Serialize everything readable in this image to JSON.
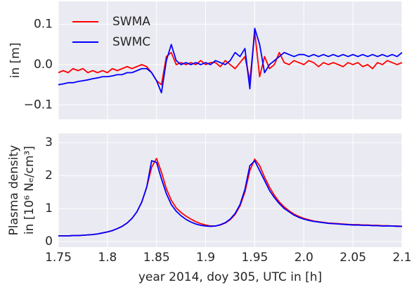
{
  "chart_data": [
    {
      "type": "line",
      "ylabel": "in [m]",
      "x": [
        1.75,
        1.755,
        1.76,
        1.765,
        1.77,
        1.775,
        1.78,
        1.785,
        1.79,
        1.795,
        1.8,
        1.805,
        1.81,
        1.815,
        1.82,
        1.825,
        1.83,
        1.835,
        1.84,
        1.845,
        1.85,
        1.855,
        1.86,
        1.865,
        1.87,
        1.875,
        1.88,
        1.885,
        1.89,
        1.895,
        1.9,
        1.905,
        1.91,
        1.915,
        1.92,
        1.925,
        1.93,
        1.935,
        1.94,
        1.945,
        1.95,
        1.955,
        1.96,
        1.965,
        1.97,
        1.975,
        1.98,
        1.985,
        1.99,
        1.995,
        2.0,
        2.005,
        2.01,
        2.015,
        2.02,
        2.025,
        2.03,
        2.035,
        2.04,
        2.045,
        2.05,
        2.055,
        2.06,
        2.065,
        2.07,
        2.075,
        2.08,
        2.085,
        2.09,
        2.095,
        2.1
      ],
      "series": [
        {
          "name": "SWMA",
          "color": "#ff0000",
          "values": [
            -0.02,
            -0.015,
            -0.02,
            -0.01,
            -0.015,
            -0.01,
            -0.02,
            -0.015,
            -0.02,
            -0.015,
            -0.02,
            -0.01,
            -0.015,
            -0.01,
            -0.005,
            -0.01,
            -0.005,
            0,
            -0.005,
            -0.02,
            -0.04,
            -0.05,
            0.02,
            0.03,
            0,
            0.005,
            0,
            0.005,
            0,
            0.01,
            0,
            0.005,
            0.005,
            -0.005,
            0.01,
            0,
            -0.01,
            0.005,
            0.02,
            -0.04,
            0.08,
            -0.03,
            0.02,
            -0.01,
            0,
            0.03,
            0.005,
            0,
            0.01,
            0.005,
            0,
            0.01,
            0.005,
            -0.005,
            0.005,
            0,
            0.005,
            0,
            -0.005,
            0.005,
            0,
            0.005,
            -0.005,
            0,
            -0.01,
            0.005,
            0,
            0.01,
            0.005,
            0,
            0.005
          ]
        },
        {
          "name": "SWMC",
          "color": "#0000ff",
          "values": [
            -0.05,
            -0.048,
            -0.045,
            -0.045,
            -0.042,
            -0.04,
            -0.038,
            -0.035,
            -0.033,
            -0.03,
            -0.03,
            -0.028,
            -0.025,
            -0.025,
            -0.02,
            -0.02,
            -0.015,
            -0.01,
            -0.01,
            -0.02,
            -0.04,
            -0.07,
            0.01,
            0.05,
            0.01,
            0,
            0.005,
            0,
            0.005,
            0,
            0.005,
            0,
            0.01,
            0.005,
            0,
            0.01,
            0.03,
            0.02,
            0.04,
            -0.06,
            0.09,
            0.05,
            -0.02,
            0,
            0.01,
            0.02,
            0.03,
            0.025,
            0.02,
            0.025,
            0.025,
            0.02,
            0.025,
            0.02,
            0.025,
            0.02,
            0.025,
            0.02,
            0.025,
            0.02,
            0.025,
            0.02,
            0.025,
            0.02,
            0.025,
            0.02,
            0.025,
            0.02,
            0.025,
            0.02,
            0.03
          ]
        }
      ],
      "xlim": [
        1.75,
        2.1
      ],
      "ylim": [
        -0.136,
        0.157
      ],
      "yticks": [
        {
          "value": 0.1,
          "label": "0.1"
        },
        {
          "value": 0,
          "label": "0.0"
        },
        {
          "value": -0.1,
          "label": "−0.1"
        }
      ],
      "grid": true,
      "legend": "upper left"
    },
    {
      "type": "line",
      "ylabel": [
        "Plasma density",
        "in [10⁶ Nₑ/cm³]"
      ],
      "xlabel": "year 2014, doy 305, UTC in [h]",
      "x": [
        1.75,
        1.755,
        1.76,
        1.765,
        1.77,
        1.775,
        1.78,
        1.785,
        1.79,
        1.795,
        1.8,
        1.805,
        1.81,
        1.815,
        1.82,
        1.825,
        1.83,
        1.835,
        1.84,
        1.845,
        1.85,
        1.855,
        1.86,
        1.865,
        1.87,
        1.875,
        1.88,
        1.885,
        1.89,
        1.895,
        1.9,
        1.905,
        1.91,
        1.915,
        1.92,
        1.925,
        1.93,
        1.935,
        1.94,
        1.945,
        1.95,
        1.955,
        1.96,
        1.965,
        1.97,
        1.975,
        1.98,
        1.985,
        1.99,
        1.995,
        2.0,
        2.005,
        2.01,
        2.015,
        2.02,
        2.025,
        2.03,
        2.035,
        2.04,
        2.045,
        2.05,
        2.055,
        2.06,
        2.065,
        2.07,
        2.075,
        2.08,
        2.085,
        2.09,
        2.095,
        2.1
      ],
      "series": [
        {
          "name": "SWMA",
          "color": "#ff0000",
          "values": [
            0.17,
            0.17,
            0.17,
            0.18,
            0.18,
            0.19,
            0.2,
            0.21,
            0.23,
            0.26,
            0.29,
            0.33,
            0.39,
            0.46,
            0.56,
            0.7,
            0.9,
            1.2,
            1.65,
            2.25,
            2.52,
            2.1,
            1.6,
            1.25,
            1.02,
            0.88,
            0.77,
            0.68,
            0.6,
            0.54,
            0.5,
            0.47,
            0.47,
            0.5,
            0.56,
            0.66,
            0.82,
            1.08,
            1.5,
            2.15,
            2.5,
            2.3,
            1.95,
            1.65,
            1.4,
            1.2,
            1.05,
            0.93,
            0.83,
            0.76,
            0.7,
            0.66,
            0.62,
            0.6,
            0.58,
            0.56,
            0.55,
            0.54,
            0.53,
            0.52,
            0.51,
            0.51,
            0.5,
            0.5,
            0.49,
            0.49,
            0.48,
            0.48,
            0.47,
            0.47,
            0.46
          ]
        },
        {
          "name": "SWMC",
          "color": "#0000ff",
          "values": [
            0.17,
            0.17,
            0.17,
            0.18,
            0.18,
            0.19,
            0.2,
            0.21,
            0.23,
            0.26,
            0.29,
            0.33,
            0.39,
            0.46,
            0.56,
            0.7,
            0.9,
            1.2,
            1.65,
            2.45,
            2.4,
            1.9,
            1.45,
            1.12,
            0.92,
            0.78,
            0.67,
            0.59,
            0.53,
            0.49,
            0.47,
            0.46,
            0.47,
            0.51,
            0.57,
            0.68,
            0.85,
            1.12,
            1.58,
            2.3,
            2.45,
            2.15,
            1.85,
            1.55,
            1.33,
            1.15,
            1.0,
            0.9,
            0.8,
            0.73,
            0.68,
            0.64,
            0.61,
            0.59,
            0.57,
            0.55,
            0.54,
            0.53,
            0.52,
            0.51,
            0.5,
            0.5,
            0.49,
            0.49,
            0.48,
            0.48,
            0.47,
            0.47,
            0.47,
            0.46,
            0.46
          ]
        }
      ],
      "xlim": [
        1.75,
        2.1
      ],
      "ylim": [
        -0.17,
        3.28
      ],
      "xticks": [
        1.75,
        1.8,
        1.85,
        1.9,
        1.95,
        {
          "value": 2,
          "label": "2.0"
        },
        2.05,
        2.1
      ],
      "yticks": [
        0,
        1,
        2,
        3
      ],
      "grid": true
    }
  ]
}
